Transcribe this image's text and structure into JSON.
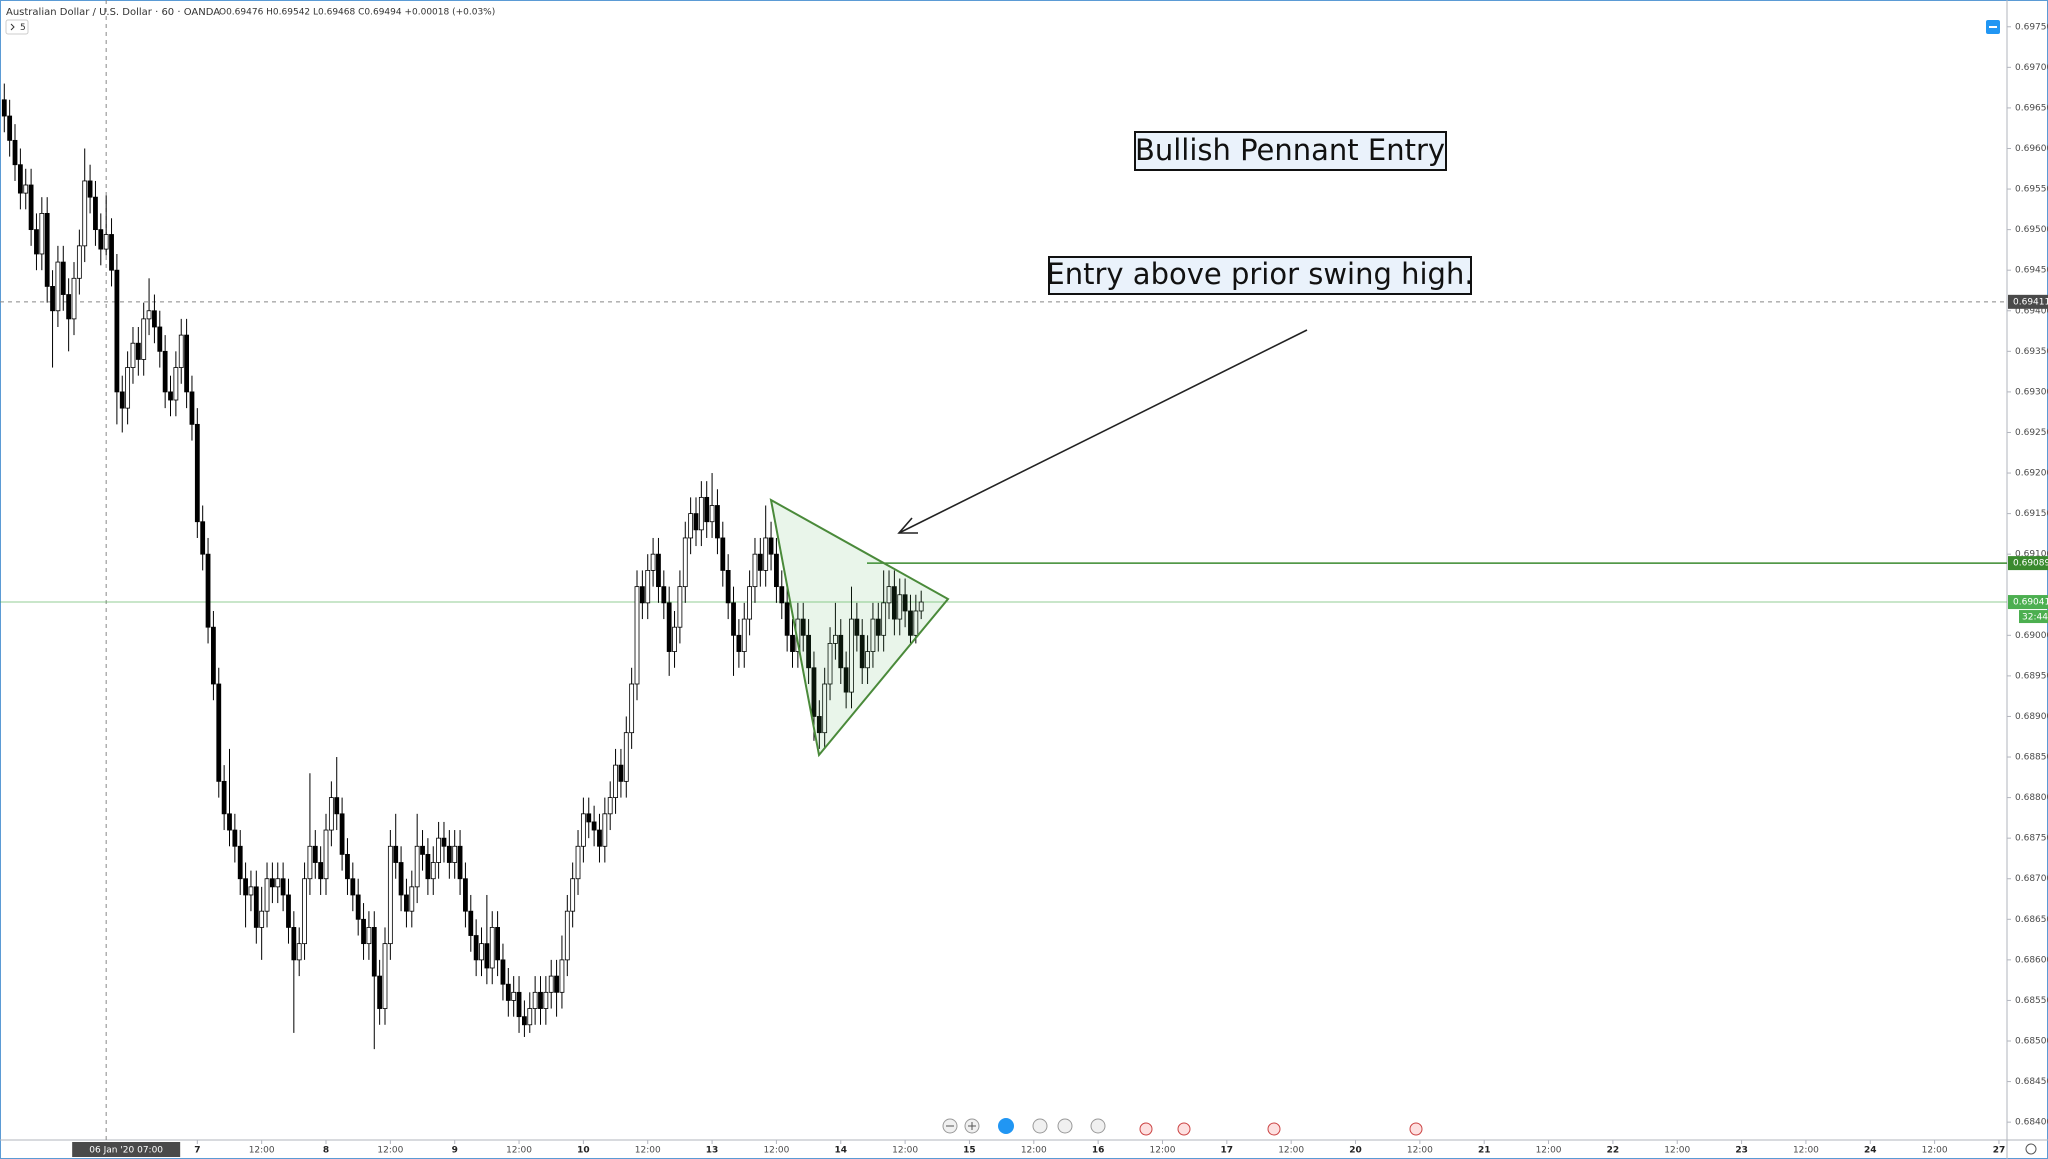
{
  "chart_data": {
    "type": "candlestick",
    "title": "Australian Dollar / U.S. Dollar · 60 · OANDA",
    "legend_values": "O0.69476 H0.69542 L0.69468 C0.69494 +0.00018 (+0.03%)",
    "indicator_toggle": "5",
    "color_up": "#ffffff",
    "color_down": "#000000",
    "xlim": [
      -12.8,
      361.5
    ],
    "ylim": [
      0.68378,
      0.69783
    ],
    "x": [
      -12,
      -11,
      -10,
      -9,
      -8,
      -7,
      -6,
      -5,
      -4,
      -3,
      -2,
      -1,
      0,
      1,
      2,
      3,
      4,
      5,
      6,
      7,
      8,
      9,
      10,
      11,
      12,
      13,
      14,
      15,
      16,
      17,
      18,
      19,
      20,
      21,
      22,
      23,
      24,
      25,
      26,
      27,
      28,
      29,
      30,
      31,
      32,
      33,
      34,
      35,
      36,
      37,
      38,
      39,
      40,
      41,
      42,
      43,
      44,
      45,
      46,
      47,
      48,
      49,
      50,
      51,
      52,
      53,
      54,
      55,
      56,
      57,
      58,
      59,
      60,
      61,
      62,
      63,
      64,
      65,
      66,
      67,
      68,
      69,
      70,
      71,
      72,
      73,
      74,
      75,
      76,
      77,
      78,
      79,
      80,
      81,
      82,
      83,
      84,
      85,
      86,
      87,
      88,
      89,
      90,
      91,
      92,
      93,
      94,
      95,
      96,
      97,
      98,
      99,
      100,
      101,
      102,
      103,
      104,
      105,
      106,
      107,
      108,
      109,
      110,
      111,
      112,
      113,
      114,
      115,
      116,
      117,
      118,
      119,
      120,
      121,
      122,
      123,
      124,
      125,
      126,
      127,
      128,
      129,
      130,
      131,
      132,
      133,
      134,
      135,
      136,
      137,
      138,
      139,
      140,
      141,
      142,
      143,
      144,
      145,
      146,
      147,
      148,
      149,
      150,
      151,
      152,
      153,
      154,
      155,
      156,
      157,
      158,
      159
    ],
    "open": [
      0.6966,
      0.6964,
      0.6961,
      0.6958,
      0.69545,
      0.69555,
      0.695,
      0.6947,
      0.6952,
      0.6943,
      0.694,
      0.6946,
      0.6942,
      0.6939,
      0.6944,
      0.6948,
      0.6956,
      0.6954,
      0.695,
      0.69476,
      0.69494,
      0.6945,
      0.693,
      0.6928,
      0.6933,
      0.6936,
      0.6934,
      0.6939,
      0.694,
      0.6938,
      0.6935,
      0.693,
      0.6929,
      0.6933,
      0.6937,
      0.693,
      0.6926,
      0.6914,
      0.691,
      0.6901,
      0.6894,
      0.6882,
      0.6878,
      0.6876,
      0.6874,
      0.687,
      0.6868,
      0.6869,
      0.6864,
      0.6866,
      0.687,
      0.6869,
      0.687,
      0.6868,
      0.6864,
      0.686,
      0.6862,
      0.687,
      0.6874,
      0.6872,
      0.687,
      0.6876,
      0.688,
      0.6878,
      0.6873,
      0.687,
      0.6868,
      0.6865,
      0.6862,
      0.6864,
      0.6858,
      0.6854,
      0.6862,
      0.6874,
      0.6872,
      0.6868,
      0.6866,
      0.6869,
      0.6874,
      0.6873,
      0.687,
      0.6872,
      0.6875,
      0.6874,
      0.6872,
      0.6874,
      0.687,
      0.6866,
      0.6863,
      0.686,
      0.6862,
      0.6859,
      0.6864,
      0.686,
      0.6857,
      0.6855,
      0.6856,
      0.6853,
      0.6852,
      0.6854,
      0.6856,
      0.6854,
      0.6856,
      0.6858,
      0.6856,
      0.686,
      0.6866,
      0.687,
      0.6874,
      0.6878,
      0.6877,
      0.6876,
      0.6874,
      0.6878,
      0.688,
      0.6884,
      0.6882,
      0.6888,
      0.6894,
      0.6906,
      0.6904,
      0.6908,
      0.691,
      0.6906,
      0.6904,
      0.6898,
      0.6901,
      0.6906,
      0.6912,
      0.6915,
      0.6913,
      0.6917,
      0.6914,
      0.6916,
      0.6912,
      0.6908,
      0.6904,
      0.69,
      0.6898,
      0.6902,
      0.6906,
      0.691,
      0.6908,
      0.6912,
      0.691,
      0.6906,
      0.6904,
      0.69,
      0.6898,
      0.6902,
      0.69,
      0.6896,
      0.689,
      0.6888,
      0.6894,
      0.6899,
      0.69,
      0.6896,
      0.6893,
      0.6902,
      0.69,
      0.6896,
      0.6898,
      0.6902,
      0.69,
      0.6904,
      0.6906,
      0.6902,
      0.6905,
      0.6903,
      0.69,
      0.6903
    ],
    "high": [
      0.6968,
      0.6966,
      0.6963,
      0.696,
      0.69575,
      0.69575,
      0.6952,
      0.6954,
      0.6954,
      0.6945,
      0.6948,
      0.6948,
      0.6944,
      0.6946,
      0.695,
      0.696,
      0.6958,
      0.6956,
      0.6952,
      0.69542,
      0.69514,
      0.6947,
      0.6932,
      0.6935,
      0.6938,
      0.6938,
      0.6941,
      0.6944,
      0.6942,
      0.694,
      0.6937,
      0.6932,
      0.6935,
      0.6939,
      0.6939,
      0.6932,
      0.6928,
      0.6916,
      0.6912,
      0.6903,
      0.6896,
      0.6884,
      0.6886,
      0.6878,
      0.6876,
      0.6872,
      0.6871,
      0.6871,
      0.6869,
      0.6872,
      0.6872,
      0.6872,
      0.6872,
      0.687,
      0.6866,
      0.6864,
      0.6872,
      0.6883,
      0.6876,
      0.6874,
      0.6878,
      0.6882,
      0.6885,
      0.688,
      0.6875,
      0.6872,
      0.687,
      0.6867,
      0.6866,
      0.6866,
      0.686,
      0.6864,
      0.6876,
      0.6878,
      0.6874,
      0.687,
      0.6871,
      0.6878,
      0.6876,
      0.6875,
      0.6874,
      0.6877,
      0.6877,
      0.6876,
      0.6876,
      0.6876,
      0.6872,
      0.6868,
      0.6865,
      0.6864,
      0.6868,
      0.6866,
      0.6866,
      0.6862,
      0.6859,
      0.6858,
      0.6858,
      0.6855,
      0.6856,
      0.6858,
      0.6858,
      0.6858,
      0.686,
      0.686,
      0.6863,
      0.6868,
      0.6872,
      0.6876,
      0.688,
      0.688,
      0.6879,
      0.6878,
      0.688,
      0.6882,
      0.6886,
      0.6886,
      0.689,
      0.6896,
      0.6908,
      0.6908,
      0.691,
      0.6912,
      0.6912,
      0.6908,
      0.6906,
      0.6903,
      0.6908,
      0.6914,
      0.6917,
      0.6917,
      0.6919,
      0.6919,
      0.692,
      0.6918,
      0.6914,
      0.691,
      0.6906,
      0.6902,
      0.6904,
      0.6908,
      0.6912,
      0.6912,
      0.6916,
      0.6914,
      0.6912,
      0.6908,
      0.6906,
      0.6902,
      0.6904,
      0.6904,
      0.6902,
      0.6898,
      0.6892,
      0.6896,
      0.6901,
      0.6904,
      0.6902,
      0.6898,
      0.6906,
      0.6904,
      0.6902,
      0.69,
      0.6904,
      0.6904,
      0.6908,
      0.6908,
      0.6908,
      0.6907,
      0.6907,
      0.6905,
      0.6905,
      0.69055
    ],
    "low": [
      0.6962,
      0.6959,
      0.6956,
      0.69525,
      0.69525,
      0.6948,
      0.6945,
      0.6945,
      0.6941,
      0.6933,
      0.6938,
      0.694,
      0.6935,
      0.6937,
      0.6942,
      0.6946,
      0.6952,
      0.6948,
      0.69456,
      0.69468,
      0.6943,
      0.6926,
      0.6925,
      0.6926,
      0.6931,
      0.6932,
      0.6932,
      0.6937,
      0.6936,
      0.6933,
      0.6928,
      0.6927,
      0.6927,
      0.6931,
      0.6928,
      0.6924,
      0.6912,
      0.6908,
      0.6899,
      0.6892,
      0.688,
      0.6876,
      0.6874,
      0.6872,
      0.6868,
      0.6864,
      0.6866,
      0.6862,
      0.686,
      0.6864,
      0.6867,
      0.6867,
      0.6866,
      0.6862,
      0.6851,
      0.6858,
      0.686,
      0.6868,
      0.687,
      0.6868,
      0.6868,
      0.6874,
      0.6876,
      0.6871,
      0.6868,
      0.6866,
      0.6863,
      0.686,
      0.686,
      0.6849,
      0.6852,
      0.6852,
      0.686,
      0.687,
      0.6866,
      0.6864,
      0.6864,
      0.6867,
      0.6871,
      0.6868,
      0.6868,
      0.687,
      0.6872,
      0.687,
      0.687,
      0.6868,
      0.6864,
      0.6861,
      0.6858,
      0.6858,
      0.6857,
      0.6857,
      0.6858,
      0.6855,
      0.6853,
      0.6853,
      0.6851,
      0.68505,
      0.6851,
      0.6852,
      0.6852,
      0.6852,
      0.6854,
      0.6853,
      0.6854,
      0.6858,
      0.6864,
      0.6868,
      0.6872,
      0.6875,
      0.6874,
      0.6872,
      0.6872,
      0.6876,
      0.6878,
      0.688,
      0.688,
      0.6886,
      0.6892,
      0.6902,
      0.6902,
      0.6906,
      0.6904,
      0.6902,
      0.6895,
      0.6896,
      0.6899,
      0.6904,
      0.691,
      0.6911,
      0.6911,
      0.6912,
      0.6912,
      0.691,
      0.6906,
      0.6902,
      0.6895,
      0.6896,
      0.6896,
      0.69,
      0.6904,
      0.6906,
      0.6906,
      0.6908,
      0.6904,
      0.6902,
      0.6898,
      0.6896,
      0.6896,
      0.6898,
      0.6894,
      0.6887,
      0.6886,
      0.6886,
      0.6892,
      0.6897,
      0.6894,
      0.6891,
      0.6891,
      0.6898,
      0.6894,
      0.6894,
      0.6896,
      0.6898,
      0.6898,
      0.6902,
      0.69,
      0.69,
      0.6901,
      0.6899,
      0.6899,
      0.6902
    ],
    "close": [
      0.6964,
      0.6961,
      0.6958,
      0.69545,
      0.69555,
      0.695,
      0.6947,
      0.6952,
      0.6943,
      0.694,
      0.6946,
      0.6942,
      0.6939,
      0.6944,
      0.6948,
      0.6956,
      0.6954,
      0.695,
      0.69476,
      0.69494,
      0.6945,
      0.693,
      0.6928,
      0.6933,
      0.6936,
      0.6934,
      0.6939,
      0.694,
      0.6938,
      0.6935,
      0.693,
      0.6929,
      0.6933,
      0.6937,
      0.693,
      0.6926,
      0.6914,
      0.691,
      0.6901,
      0.6894,
      0.6882,
      0.6878,
      0.6876,
      0.6874,
      0.687,
      0.6868,
      0.6869,
      0.6864,
      0.6866,
      0.687,
      0.6869,
      0.687,
      0.6868,
      0.6864,
      0.686,
      0.6862,
      0.687,
      0.6874,
      0.6872,
      0.687,
      0.6876,
      0.688,
      0.6878,
      0.6873,
      0.687,
      0.6868,
      0.6865,
      0.6862,
      0.6864,
      0.6858,
      0.6854,
      0.6862,
      0.6874,
      0.6872,
      0.6868,
      0.6866,
      0.6869,
      0.6874,
      0.6873,
      0.687,
      0.6872,
      0.6875,
      0.6874,
      0.6872,
      0.6874,
      0.687,
      0.6866,
      0.6863,
      0.686,
      0.6862,
      0.6859,
      0.6864,
      0.686,
      0.6857,
      0.6855,
      0.6856,
      0.6853,
      0.6852,
      0.6854,
      0.6856,
      0.6854,
      0.6856,
      0.6858,
      0.6856,
      0.686,
      0.6866,
      0.687,
      0.6874,
      0.6878,
      0.6877,
      0.6876,
      0.6874,
      0.6878,
      0.688,
      0.6884,
      0.6882,
      0.6888,
      0.6894,
      0.6906,
      0.6904,
      0.6908,
      0.691,
      0.6906,
      0.6904,
      0.6898,
      0.6901,
      0.6906,
      0.6912,
      0.6915,
      0.6913,
      0.6917,
      0.6914,
      0.6916,
      0.6912,
      0.6908,
      0.6904,
      0.69,
      0.6898,
      0.6902,
      0.6906,
      0.691,
      0.6908,
      0.6912,
      0.691,
      0.6906,
      0.6904,
      0.69,
      0.6898,
      0.6902,
      0.69,
      0.6896,
      0.689,
      0.6888,
      0.6894,
      0.6899,
      0.69,
      0.6896,
      0.6893,
      0.6902,
      0.69,
      0.6896,
      0.6898,
      0.6902,
      0.69,
      0.6904,
      0.6906,
      0.6902,
      0.6905,
      0.6903,
      0.69,
      0.6903,
      0.69041
    ],
    "yticks": [
      {
        "value": 0.684,
        "label": "0.68400"
      },
      {
        "value": 0.6845,
        "label": "0.68450"
      },
      {
        "value": 0.685,
        "label": "0.68500"
      },
      {
        "value": 0.6855,
        "label": "0.68550"
      },
      {
        "value": 0.686,
        "label": "0.68600"
      },
      {
        "value": 0.6865,
        "label": "0.68650"
      },
      {
        "value": 0.687,
        "label": "0.68700"
      },
      {
        "value": 0.6875,
        "label": "0.68750"
      },
      {
        "value": 0.688,
        "label": "0.68800"
      },
      {
        "value": 0.6885,
        "label": "0.68850"
      },
      {
        "value": 0.689,
        "label": "0.68900"
      },
      {
        "value": 0.6895,
        "label": "0.68950"
      },
      {
        "value": 0.69,
        "label": "0.69000"
      },
      {
        "value": 0.691,
        "label": "0.69100"
      },
      {
        "value": 0.6915,
        "label": "0.69150"
      },
      {
        "value": 0.692,
        "label": "0.69200"
      },
      {
        "value": 0.6925,
        "label": "0.69250"
      },
      {
        "value": 0.693,
        "label": "0.69300"
      },
      {
        "value": 0.6935,
        "label": "0.69350"
      },
      {
        "value": 0.694,
        "label": "0.69400"
      },
      {
        "value": 0.6945,
        "label": "0.69450"
      },
      {
        "value": 0.695,
        "label": "0.69500"
      },
      {
        "value": 0.6955,
        "label": "0.69550"
      },
      {
        "value": 0.696,
        "label": "0.69600"
      },
      {
        "value": 0.6965,
        "label": "0.69650"
      },
      {
        "value": 0.697,
        "label": "0.69700"
      },
      {
        "value": 0.6975,
        "label": "0.69750"
      }
    ],
    "xticks": [
      {
        "value": 24,
        "label": "7"
      },
      {
        "value": 36,
        "label": "12:00"
      },
      {
        "value": 48,
        "label": "8"
      },
      {
        "value": 60,
        "label": "12:00"
      },
      {
        "value": 72,
        "label": "9"
      },
      {
        "value": 84,
        "label": "12:00"
      },
      {
        "value": 96,
        "label": "10"
      },
      {
        "value": 108,
        "label": "12:00"
      },
      {
        "value": 120,
        "label": "13"
      },
      {
        "value": 132,
        "label": "12:00"
      },
      {
        "value": 144,
        "label": "14"
      },
      {
        "value": 156,
        "label": "12:00"
      },
      {
        "value": 168,
        "label": "15"
      },
      {
        "value": 180,
        "label": "12:00"
      },
      {
        "value": 192,
        "label": "16"
      },
      {
        "value": 204,
        "label": "12:00"
      },
      {
        "value": 216,
        "label": "17"
      },
      {
        "value": 228,
        "label": "12:00"
      },
      {
        "value": 240,
        "label": "20"
      },
      {
        "value": 252,
        "label": "12:00"
      },
      {
        "value": 264,
        "label": "21"
      },
      {
        "value": 276,
        "label": "12:00"
      },
      {
        "value": 288,
        "label": "22"
      },
      {
        "value": 300,
        "label": "12:00"
      },
      {
        "value": 312,
        "label": "23"
      },
      {
        "value": 324,
        "label": "12:00"
      },
      {
        "value": 336,
        "label": "24"
      },
      {
        "value": 348,
        "label": "12:00"
      },
      {
        "value": 360,
        "label": "27"
      }
    ],
    "crosshair": {
      "x": 7,
      "x_label": "06 Jan '20  07:00",
      "y": 0.69411
    },
    "price_lines": [
      {
        "value": 0.69089,
        "color": "#3a8a2e"
      },
      {
        "value": 0.69041,
        "color": "#4caf50",
        "countdown": "32:44"
      }
    ],
    "annotations": [
      "Bullish Pennant Entry",
      "Entry above prior swing high."
    ]
  }
}
